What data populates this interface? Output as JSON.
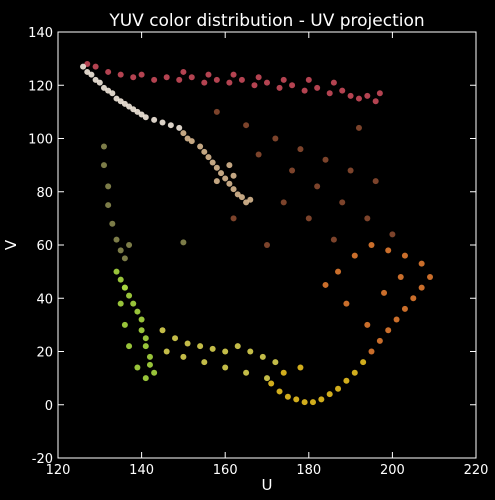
{
  "chart_data": {
    "type": "scatter",
    "title": "YUV color distribution - UV projection",
    "xlabel": "U",
    "ylabel": "V",
    "xlim": [
      120,
      220
    ],
    "ylim": [
      -20,
      140
    ],
    "xticks": [
      "120",
      "140",
      "160",
      "180",
      "200",
      "220"
    ],
    "yticks": [
      "140",
      "120",
      "100",
      "80",
      "60",
      "40",
      "20",
      "0",
      "-20"
    ],
    "grid": false,
    "background": "#000000",
    "axis_color": "#ffffff",
    "clusters": [
      {
        "region": "top band",
        "color": "#c84a5a",
        "points": [
          [
            127,
            128
          ],
          [
            129,
            127
          ],
          [
            132,
            125
          ],
          [
            135,
            124
          ],
          [
            138,
            123
          ],
          [
            140,
            124
          ],
          [
            143,
            122
          ],
          [
            146,
            123
          ],
          [
            149,
            122
          ],
          [
            152,
            123
          ],
          [
            155,
            121
          ],
          [
            158,
            122
          ],
          [
            161,
            121
          ],
          [
            164,
            122
          ],
          [
            167,
            120
          ],
          [
            170,
            121
          ],
          [
            173,
            119
          ],
          [
            176,
            120
          ],
          [
            179,
            118
          ],
          [
            182,
            119
          ],
          [
            185,
            117
          ],
          [
            188,
            118
          ],
          [
            190,
            116
          ],
          [
            192,
            115
          ],
          [
            194,
            116
          ],
          [
            196,
            114
          ],
          [
            197,
            117
          ],
          [
            186,
            121
          ],
          [
            180,
            122
          ],
          [
            174,
            122
          ],
          [
            168,
            123
          ],
          [
            162,
            124
          ],
          [
            156,
            124
          ],
          [
            150,
            125
          ]
        ]
      },
      {
        "region": "white diagonal",
        "color": "#f2e8dc",
        "points": [
          [
            126,
            127
          ],
          [
            127,
            125
          ],
          [
            128,
            124
          ],
          [
            129,
            122
          ],
          [
            130,
            121
          ],
          [
            131,
            119
          ],
          [
            132,
            118
          ],
          [
            133,
            117
          ],
          [
            134,
            115
          ],
          [
            135,
            114
          ],
          [
            136,
            113
          ],
          [
            137,
            112
          ],
          [
            138,
            111
          ],
          [
            139,
            110
          ],
          [
            140,
            109
          ],
          [
            141,
            108
          ],
          [
            143,
            107
          ],
          [
            145,
            106
          ],
          [
            147,
            105
          ],
          [
            149,
            104
          ]
        ]
      },
      {
        "region": "beige diagonal",
        "color": "#d8b890",
        "points": [
          [
            150,
            102
          ],
          [
            151,
            100
          ],
          [
            152,
            99
          ],
          [
            154,
            97
          ],
          [
            155,
            95
          ],
          [
            156,
            93
          ],
          [
            157,
            91
          ],
          [
            158,
            89
          ],
          [
            159,
            87
          ],
          [
            160,
            85
          ],
          [
            161,
            83
          ],
          [
            162,
            81
          ],
          [
            163,
            79
          ],
          [
            164,
            78
          ],
          [
            165,
            76
          ],
          [
            166,
            77
          ],
          [
            162,
            86
          ],
          [
            158,
            84
          ],
          [
            161,
            90
          ]
        ]
      },
      {
        "region": "dark olive",
        "color": "#8a8a50",
        "points": [
          [
            131,
            97
          ],
          [
            131,
            90
          ],
          [
            132,
            82
          ],
          [
            132,
            75
          ],
          [
            133,
            68
          ],
          [
            134,
            62
          ],
          [
            135,
            58
          ],
          [
            136,
            55
          ],
          [
            150,
            61
          ],
          [
            137,
            60
          ]
        ]
      },
      {
        "region": "green column",
        "color": "#a8d840",
        "points": [
          [
            134,
            50
          ],
          [
            135,
            47
          ],
          [
            136,
            44
          ],
          [
            137,
            41
          ],
          [
            138,
            38
          ],
          [
            139,
            35
          ],
          [
            140,
            32
          ],
          [
            140,
            28
          ],
          [
            141,
            25
          ],
          [
            141,
            22
          ],
          [
            142,
            18
          ],
          [
            142,
            15
          ],
          [
            143,
            12
          ],
          [
            141,
            10
          ],
          [
            139,
            14
          ],
          [
            137,
            22
          ],
          [
            136,
            30
          ],
          [
            135,
            38
          ],
          [
            136,
            44
          ]
        ]
      },
      {
        "region": "yellow green band",
        "color": "#d8d050",
        "points": [
          [
            145,
            28
          ],
          [
            148,
            25
          ],
          [
            151,
            23
          ],
          [
            154,
            22
          ],
          [
            157,
            21
          ],
          [
            160,
            20
          ],
          [
            163,
            22
          ],
          [
            166,
            20
          ],
          [
            169,
            18
          ],
          [
            172,
            16
          ],
          [
            146,
            20
          ],
          [
            150,
            18
          ],
          [
            155,
            16
          ],
          [
            160,
            14
          ],
          [
            165,
            12
          ],
          [
            170,
            10
          ]
        ]
      },
      {
        "region": "yellow floor",
        "color": "#e8c020",
        "points": [
          [
            171,
            8
          ],
          [
            173,
            5
          ],
          [
            175,
            3
          ],
          [
            177,
            2
          ],
          [
            179,
            1
          ],
          [
            181,
            1
          ],
          [
            183,
            2
          ],
          [
            185,
            4
          ],
          [
            187,
            6
          ],
          [
            189,
            9
          ],
          [
            191,
            12
          ],
          [
            193,
            16
          ],
          [
            174,
            12
          ],
          [
            178,
            14
          ]
        ]
      },
      {
        "region": "orange right",
        "color": "#e07a30",
        "points": [
          [
            195,
            20
          ],
          [
            197,
            24
          ],
          [
            199,
            28
          ],
          [
            201,
            32
          ],
          [
            203,
            36
          ],
          [
            205,
            40
          ],
          [
            207,
            44
          ],
          [
            209,
            48
          ],
          [
            207,
            53
          ],
          [
            203,
            56
          ],
          [
            199,
            58
          ],
          [
            195,
            60
          ],
          [
            191,
            56
          ],
          [
            187,
            50
          ],
          [
            184,
            45
          ],
          [
            189,
            38
          ],
          [
            194,
            30
          ],
          [
            198,
            42
          ],
          [
            202,
            48
          ]
        ]
      },
      {
        "region": "brown scatter",
        "color": "#8a4a30",
        "points": [
          [
            158,
            110
          ],
          [
            165,
            105
          ],
          [
            172,
            100
          ],
          [
            178,
            96
          ],
          [
            184,
            92
          ],
          [
            190,
            88
          ],
          [
            196,
            84
          ],
          [
            168,
            94
          ],
          [
            176,
            88
          ],
          [
            182,
            82
          ],
          [
            188,
            76
          ],
          [
            194,
            70
          ],
          [
            200,
            64
          ],
          [
            174,
            76
          ],
          [
            180,
            70
          ],
          [
            170,
            60
          ],
          [
            186,
            62
          ],
          [
            192,
            104
          ],
          [
            162,
            70
          ]
        ]
      }
    ]
  }
}
